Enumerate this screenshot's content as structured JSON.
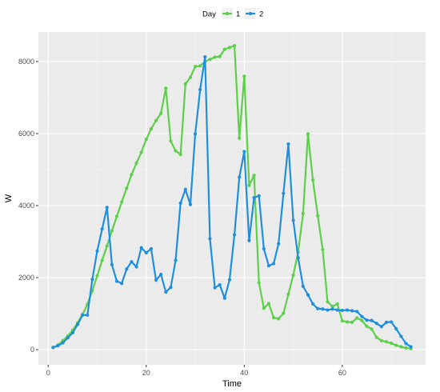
{
  "chart_data": {
    "type": "line",
    "xlabel": "Time",
    "ylabel": "W",
    "xlim": [
      -2,
      77
    ],
    "ylim": [
      -420,
      8820
    ],
    "x_ticks": [
      0,
      20,
      40,
      60
    ],
    "y_ticks": [
      0,
      2000,
      4000,
      6000,
      8000
    ],
    "grid": true,
    "legend": {
      "title": "Day",
      "placement": "top",
      "entries": [
        "1",
        "2"
      ]
    },
    "series": [
      {
        "name": "1",
        "color": "#5ecf4a",
        "x": [
          1,
          2,
          3,
          4,
          5,
          6,
          7,
          8,
          9,
          10,
          11,
          12,
          13,
          14,
          15,
          16,
          17,
          18,
          19,
          20,
          21,
          22,
          23,
          24,
          25,
          26,
          27,
          28,
          29,
          30,
          31,
          32,
          33,
          34,
          35,
          36,
          37,
          38,
          39,
          40,
          41,
          42,
          43,
          44,
          45,
          46,
          47,
          48,
          49,
          50,
          51,
          52,
          53,
          54,
          55,
          56,
          57,
          58,
          59,
          60,
          61,
          62,
          63,
          64,
          65,
          66,
          67,
          68,
          69,
          70,
          71,
          72,
          73,
          74
        ],
        "y": [
          60,
          130,
          250,
          380,
          540,
          740,
          980,
          1260,
          1640,
          2050,
          2480,
          2880,
          3300,
          3700,
          4100,
          4480,
          4860,
          5180,
          5480,
          5840,
          6130,
          6360,
          6560,
          7260,
          5790,
          5520,
          5420,
          7380,
          7560,
          7860,
          7880,
          8000,
          8060,
          8120,
          8140,
          8340,
          8390,
          8440,
          5870,
          7590,
          4560,
          4840,
          1860,
          1150,
          1280,
          890,
          860,
          1010,
          1540,
          2070,
          2710,
          3780,
          5990,
          4710,
          3720,
          2780,
          1330,
          1200,
          1270,
          800,
          770,
          760,
          880,
          810,
          650,
          570,
          340,
          250,
          220,
          180,
          120,
          80,
          50,
          30
        ]
      },
      {
        "name": "2",
        "color": "#1f8fdc",
        "x": [
          1,
          2,
          3,
          4,
          5,
          6,
          7,
          8,
          9,
          10,
          11,
          12,
          13,
          14,
          15,
          16,
          17,
          18,
          19,
          20,
          21,
          22,
          23,
          24,
          25,
          26,
          27,
          28,
          29,
          30,
          31,
          32,
          33,
          34,
          35,
          36,
          37,
          38,
          39,
          40,
          41,
          42,
          43,
          44,
          45,
          46,
          47,
          48,
          49,
          50,
          51,
          52,
          53,
          54,
          55,
          56,
          57,
          58,
          59,
          60,
          61,
          62,
          63,
          64,
          65,
          66,
          67,
          68,
          69,
          70,
          71,
          72,
          73,
          74
        ],
        "y": [
          60,
          110,
          190,
          330,
          470,
          700,
          960,
          960,
          1950,
          2740,
          3350,
          3950,
          2360,
          1900,
          1840,
          2240,
          2440,
          2300,
          2830,
          2690,
          2800,
          1930,
          2090,
          1600,
          1730,
          2480,
          4070,
          4450,
          4030,
          5990,
          7220,
          8130,
          3080,
          1720,
          1800,
          1430,
          1940,
          3190,
          4790,
          5500,
          3030,
          4220,
          4270,
          2800,
          2330,
          2390,
          2940,
          4340,
          5710,
          3590,
          2550,
          1760,
          1520,
          1270,
          1140,
          1130,
          1100,
          1130,
          1100,
          1090,
          1100,
          1080,
          1060,
          920,
          820,
          810,
          730,
          640,
          760,
          770,
          580,
          370,
          170,
          80
        ]
      }
    ]
  }
}
